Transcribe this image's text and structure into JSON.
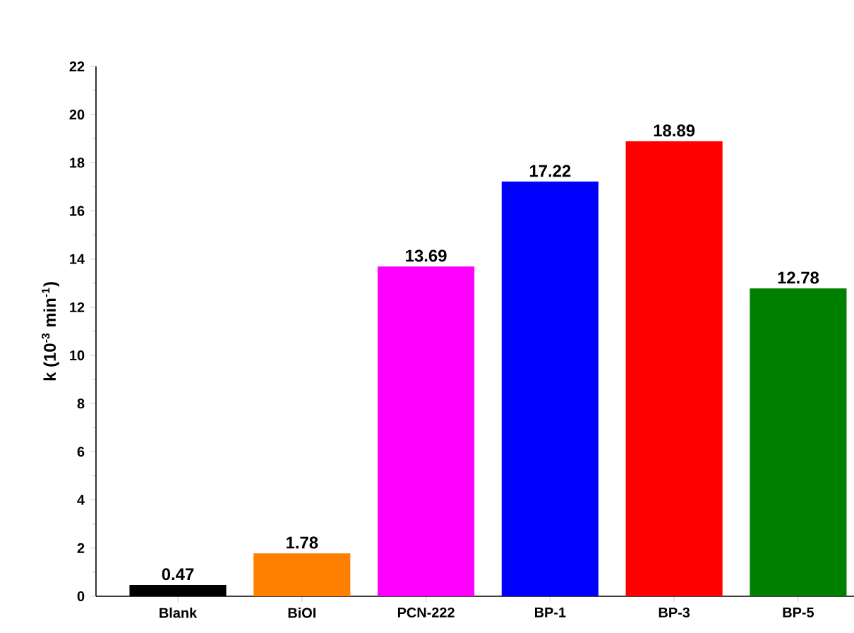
{
  "chart_data": {
    "type": "bar",
    "ylabel": "k (10$^{-3}$ min$^{-1}$)",
    "categories": [
      "Blank",
      "BiOI",
      "PCN-222",
      "BP-1",
      "BP-3",
      "BP-5"
    ],
    "values": [
      0.47,
      1.78,
      13.69,
      17.22,
      18.89,
      12.78
    ],
    "colors": [
      "#000000",
      "#ff8000",
      "#ff00ff",
      "#0000ff",
      "#ff0000",
      "#008000"
    ],
    "ylim": [
      0,
      22
    ],
    "yticks": [
      0,
      2,
      4,
      6,
      8,
      10,
      12,
      14,
      16,
      18,
      20,
      22
    ],
    "data_labels": true
  }
}
